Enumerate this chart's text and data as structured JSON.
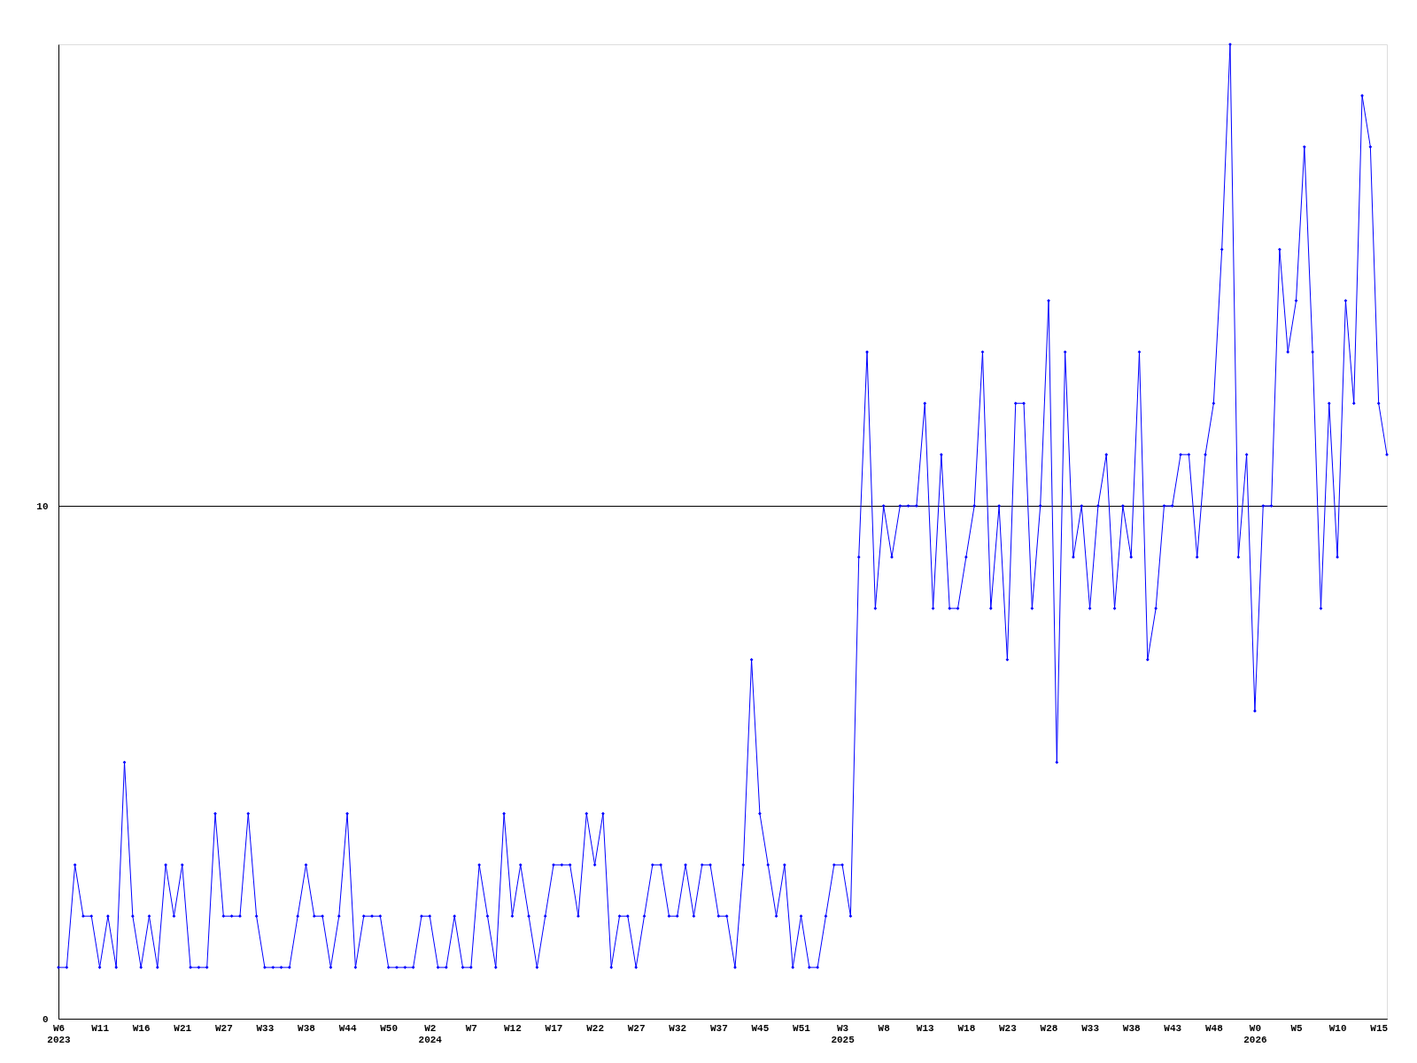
{
  "chart_data": {
    "type": "line",
    "categories": [
      "W6\n2023",
      null,
      null,
      null,
      null,
      "W11",
      null,
      null,
      null,
      null,
      "W16",
      null,
      null,
      null,
      null,
      "W21",
      null,
      null,
      null,
      null,
      "W27",
      null,
      null,
      null,
      null,
      "W33",
      null,
      null,
      null,
      null,
      "W38",
      null,
      null,
      null,
      null,
      "W44",
      null,
      null,
      null,
      null,
      "W50",
      null,
      null,
      null,
      null,
      "W2\n2024",
      null,
      null,
      null,
      null,
      "W7",
      null,
      null,
      null,
      null,
      "W12",
      null,
      null,
      null,
      null,
      "W17",
      null,
      null,
      null,
      null,
      "W22",
      null,
      null,
      null,
      null,
      "W27",
      null,
      null,
      null,
      null,
      "W32",
      null,
      null,
      null,
      null,
      "W37",
      null,
      null,
      null,
      null,
      "W45",
      null,
      null,
      null,
      null,
      "W51",
      null,
      null,
      null,
      null,
      "W3\n2025",
      null,
      null,
      null,
      null,
      "W8",
      null,
      null,
      null,
      null,
      "W13",
      null,
      null,
      null,
      null,
      "W18",
      null,
      null,
      null,
      null,
      "W23",
      null,
      null,
      null,
      null,
      "W28",
      null,
      null,
      null,
      null,
      "W33",
      null,
      null,
      null,
      null,
      "W38",
      null,
      null,
      null,
      null,
      "W43",
      null,
      null,
      null,
      null,
      "W48",
      null,
      null,
      null,
      null,
      "W0\n2026",
      null,
      null,
      null,
      null,
      "W5",
      null,
      null,
      null,
      null,
      "W10",
      null,
      null,
      null,
      null,
      "W15",
      null
    ],
    "series": [
      {
        "color": "#0000ff",
        "values": [
          1,
          1,
          3,
          2,
          2,
          1,
          2,
          1,
          5,
          2,
          1,
          2,
          1,
          3,
          2,
          3,
          1,
          1,
          1,
          4,
          2,
          2,
          2,
          4,
          2,
          1,
          1,
          1,
          1,
          2,
          3,
          2,
          2,
          1,
          2,
          4,
          1,
          2,
          2,
          2,
          1,
          1,
          1,
          1,
          2,
          2,
          1,
          1,
          2,
          1,
          1,
          3,
          2,
          1,
          4,
          2,
          3,
          2,
          1,
          2,
          3,
          3,
          3,
          2,
          4,
          3,
          4,
          1,
          2,
          2,
          1,
          2,
          3,
          3,
          2,
          2,
          3,
          2,
          3,
          3,
          2,
          2,
          1,
          3,
          7,
          4,
          3,
          2,
          3,
          1,
          2,
          1,
          1,
          2,
          3,
          3,
          2,
          9,
          13,
          8,
          10,
          9,
          10,
          10,
          10,
          12,
          8,
          11,
          8,
          8,
          9,
          10,
          13,
          8,
          10,
          7,
          12,
          12,
          8,
          10,
          14,
          5,
          13,
          9,
          10,
          8,
          10,
          11,
          8,
          10,
          9,
          13,
          7,
          8,
          10,
          10,
          11,
          11,
          9,
          11,
          12,
          15,
          19,
          9,
          11,
          6,
          10,
          10,
          15,
          13,
          14,
          17,
          13,
          8,
          12,
          9,
          14,
          12,
          18,
          17,
          12,
          11
        ]
      }
    ],
    "ylim": [
      0,
      19
    ],
    "yticks": [
      0,
      10
    ],
    "grid": "y",
    "marker": "diamond",
    "line_style": "solid",
    "legend": false
  }
}
